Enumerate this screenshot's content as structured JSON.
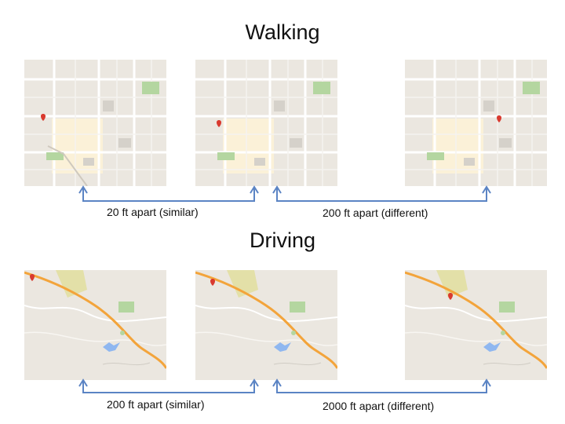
{
  "walking": {
    "title": "Walking",
    "caption_similar": "20 ft apart (similar)",
    "caption_different": "200 ft apart (different)"
  },
  "driving": {
    "title": "Driving",
    "caption_similar": "200 ft apart (similar)",
    "caption_different": "2000 ft apart (different)"
  },
  "colors": {
    "arrow": "#5b84c4",
    "map_background": "#ebe7e0",
    "road": "#ffffff",
    "highway": "#f3a43b",
    "park": "#b4d6a0",
    "water": "#8fb7f0",
    "marker": "#d93a2f"
  }
}
